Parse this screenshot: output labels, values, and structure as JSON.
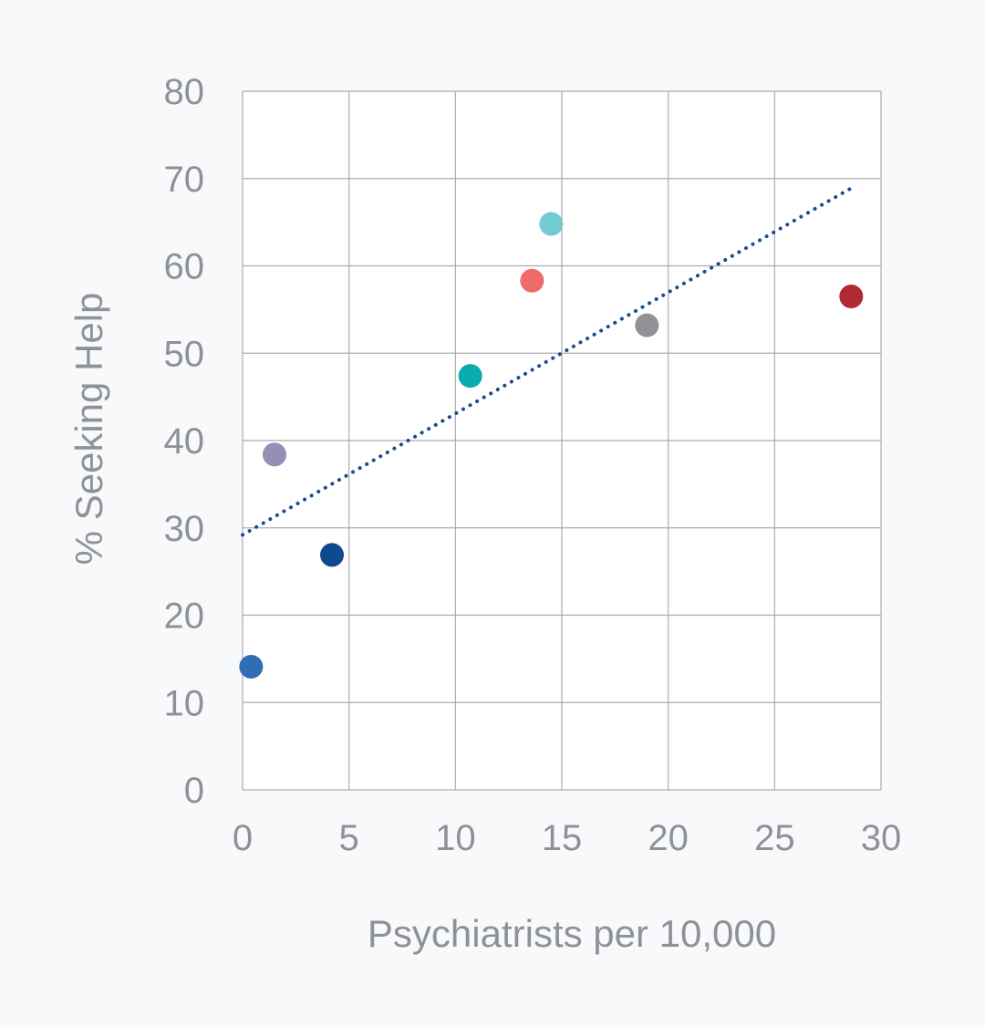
{
  "chart_data": {
    "type": "scatter",
    "title": "",
    "xlabel": "Psychiatrists per 10,000",
    "ylabel": "% Seeking Help",
    "xlim": [
      0,
      30
    ],
    "ylim": [
      0,
      80
    ],
    "xticks": [
      0,
      5,
      10,
      15,
      20,
      25,
      30
    ],
    "yticks": [
      0,
      10,
      20,
      30,
      40,
      50,
      60,
      70,
      80
    ],
    "xtick_labels": [
      "0",
      "5",
      "10",
      "15",
      "20",
      "25",
      "30"
    ],
    "ytick_labels": [
      "0",
      "10",
      "20",
      "30",
      "40",
      "50",
      "60",
      "70",
      "80"
    ],
    "grid": true,
    "legend": "none",
    "points": [
      {
        "x": 0.4,
        "y": 14.1,
        "color": "#2f6db5"
      },
      {
        "x": 1.5,
        "y": 38.4,
        "color": "#968eb4"
      },
      {
        "x": 4.2,
        "y": 26.9,
        "color": "#0f4a8e"
      },
      {
        "x": 10.7,
        "y": 47.4,
        "color": "#0aabb1"
      },
      {
        "x": 13.6,
        "y": 58.3,
        "color": "#ef6a6a"
      },
      {
        "x": 14.5,
        "y": 64.8,
        "color": "#72cbd0"
      },
      {
        "x": 19.0,
        "y": 53.2,
        "color": "#929296"
      },
      {
        "x": 28.6,
        "y": 56.5,
        "color": "#b02a33"
      }
    ],
    "trendline": {
      "style": "dotted",
      "color": "#1c4c8f",
      "x": [
        0,
        28.6
      ],
      "y": [
        29.2,
        68.9
      ]
    }
  }
}
